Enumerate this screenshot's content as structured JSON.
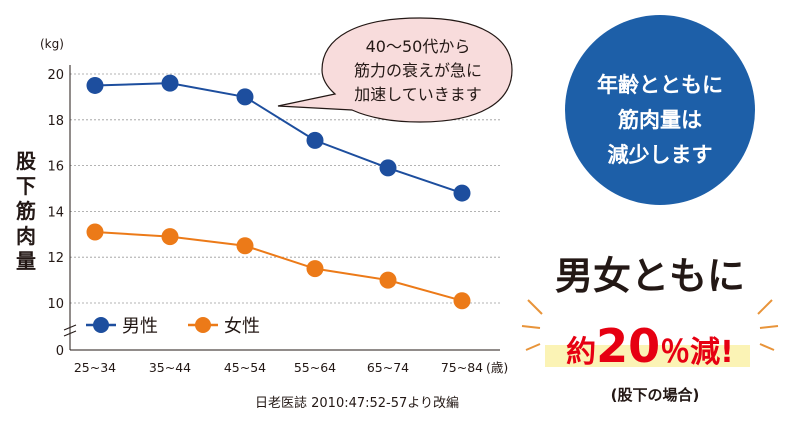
{
  "chart_data": {
    "type": "line",
    "unit_label": "(kg)",
    "ylabel": "股下筋肉量",
    "ylim": [
      0,
      20
    ],
    "yticks": [
      "0",
      "10",
      "12",
      "14",
      "16",
      "18",
      "20"
    ],
    "categories": [
      "25~34",
      "35~44",
      "45~54",
      "55~64",
      "65~74",
      "75~84"
    ],
    "x_unit": "(歳)",
    "grid": true,
    "legend_position": "bottom-left",
    "series": [
      {
        "name": "男性",
        "color": "#1d4e9e",
        "values": [
          19.5,
          19.6,
          19.0,
          17.1,
          15.9,
          14.8
        ]
      },
      {
        "name": "女性",
        "color": "#ec7a18",
        "values": [
          13.1,
          12.9,
          12.5,
          11.5,
          11.0,
          10.1
        ]
      }
    ],
    "annotation": [
      "40～50代から",
      "筋力の衰えが急に",
      "加速していきます"
    ],
    "source": "日老医誌 2010:47:52-57より改編"
  },
  "callout": {
    "circle_lines": [
      "年齢とともに",
      "筋肉量は",
      "減少します"
    ],
    "headline": "男女ともに",
    "emphasis": {
      "prefix": "約",
      "number": "20",
      "suffix": "％減!"
    },
    "scope": "(股下の場合)",
    "circle_color": "#1d5fa8",
    "highlight_color": "#fbf3b5",
    "accent_color": "#e60012"
  }
}
